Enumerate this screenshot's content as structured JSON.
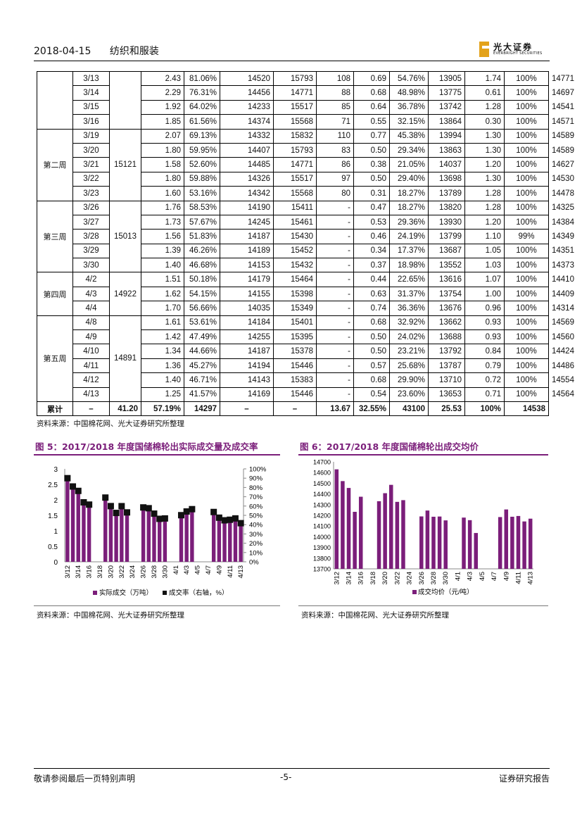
{
  "header": {
    "date": "2018-04-15",
    "section": "纺织和服装",
    "logo_cn": "光大证券",
    "logo_en": "EVERBRIGHT SECURITIES"
  },
  "table": {
    "groups": [
      {
        "week": "",
        "avg": "",
        "rows": [
          [
            "3/13",
            "2.43",
            "81.06%",
            "14520",
            "15793",
            "108",
            "0.69",
            "54.76%",
            "13905",
            "1.74",
            "100%",
            "14771"
          ],
          [
            "3/14",
            "2.29",
            "76.31%",
            "14456",
            "14771",
            "88",
            "0.68",
            "48.98%",
            "13775",
            "0.61",
            "100%",
            "14697"
          ],
          [
            "3/15",
            "1.92",
            "64.02%",
            "14233",
            "15517",
            "85",
            "0.64",
            "36.78%",
            "13742",
            "1.28",
            "100%",
            "14541"
          ],
          [
            "3/16",
            "1.85",
            "61.56%",
            "14374",
            "15568",
            "71",
            "0.55",
            "32.15%",
            "13864",
            "0.30",
            "100%",
            "14571"
          ]
        ]
      },
      {
        "week": "第二周",
        "avg": "15121",
        "rows": [
          [
            "3/19",
            "2.07",
            "69.13%",
            "14332",
            "15832",
            "110",
            "0.77",
            "45.38%",
            "13994",
            "1.30",
            "100%",
            "14589"
          ],
          [
            "3/20",
            "1.80",
            "59.95%",
            "14407",
            "15793",
            "83",
            "0.50",
            "29.34%",
            "13863",
            "1.30",
            "100%",
            "14589"
          ],
          [
            "3/21",
            "1.58",
            "52.60%",
            "14485",
            "14771",
            "86",
            "0.38",
            "21.05%",
            "14037",
            "1.20",
            "100%",
            "14627"
          ],
          [
            "3/22",
            "1.80",
            "59.88%",
            "14326",
            "15517",
            "97",
            "0.50",
            "29.40%",
            "13698",
            "1.30",
            "100%",
            "14530"
          ],
          [
            "3/23",
            "1.60",
            "53.16%",
            "14342",
            "15568",
            "80",
            "0.31",
            "18.27%",
            "13789",
            "1.28",
            "100%",
            "14478"
          ]
        ]
      },
      {
        "week": "第三周",
        "avg": "15013",
        "rows": [
          [
            "3/26",
            "1.76",
            "58.53%",
            "14190",
            "15411",
            "-",
            "0.47",
            "18.27%",
            "13820",
            "1.28",
            "100%",
            "14325"
          ],
          [
            "3/27",
            "1.73",
            "57.67%",
            "14245",
            "15461",
            "-",
            "0.53",
            "29.36%",
            "13930",
            "1.20",
            "100%",
            "14384"
          ],
          [
            "3/28",
            "1.56",
            "51.83%",
            "14187",
            "15430",
            "-",
            "0.46",
            "24.19%",
            "13799",
            "1.10",
            "99%",
            "14349"
          ],
          [
            "3/29",
            "1.39",
            "46.26%",
            "14189",
            "15452",
            "-",
            "0.34",
            "17.37%",
            "13687",
            "1.05",
            "100%",
            "14351"
          ],
          [
            "3/30",
            "1.40",
            "46.68%",
            "14153",
            "15432",
            "-",
            "0.37",
            "18.98%",
            "13552",
            "1.03",
            "100%",
            "14373"
          ]
        ]
      },
      {
        "week": "第四周",
        "avg": "14922",
        "rows": [
          [
            "4/2",
            "1.51",
            "50.18%",
            "14179",
            "15464",
            "-",
            "0.44",
            "22.65%",
            "13616",
            "1.07",
            "100%",
            "14410"
          ],
          [
            "4/3",
            "1.62",
            "54.15%",
            "14155",
            "15398",
            "-",
            "0.63",
            "31.37%",
            "13754",
            "1.00",
            "100%",
            "14409"
          ],
          [
            "4/4",
            "1.70",
            "56.66%",
            "14035",
            "15349",
            "-",
            "0.74",
            "36.36%",
            "13676",
            "0.96",
            "100%",
            "14314"
          ]
        ]
      },
      {
        "week": "第五周",
        "avg": "14891",
        "rows": [
          [
            "4/8",
            "1.61",
            "53.61%",
            "14184",
            "15401",
            "-",
            "0.68",
            "32.92%",
            "13662",
            "0.93",
            "100%",
            "14569"
          ],
          [
            "4/9",
            "1.42",
            "47.49%",
            "14255",
            "15395",
            "-",
            "0.50",
            "24.02%",
            "13688",
            "0.93",
            "100%",
            "14560"
          ],
          [
            "4/10",
            "1.34",
            "44.66%",
            "14187",
            "15378",
            "-",
            "0.50",
            "23.21%",
            "13792",
            "0.84",
            "100%",
            "14424"
          ],
          [
            "4/11",
            "1.36",
            "45.27%",
            "14194",
            "15446",
            "-",
            "0.57",
            "25.68%",
            "13787",
            "0.79",
            "100%",
            "14486"
          ],
          [
            "4/12",
            "1.40",
            "46.71%",
            "14143",
            "15383",
            "-",
            "0.68",
            "29.90%",
            "13710",
            "0.72",
            "100%",
            "14554"
          ],
          [
            "4/13",
            "1.25",
            "41.57%",
            "14169",
            "15446",
            "-",
            "0.54",
            "23.60%",
            "13653",
            "0.71",
            "100%",
            "14564"
          ]
        ]
      }
    ],
    "total": [
      "累计",
      "–",
      "41.20",
      "57.19%",
      "14297",
      "–",
      "–",
      "13.67",
      "32.55%",
      "43100",
      "25.53",
      "100%",
      "14538"
    ]
  },
  "source_note": "资料来源：中国棉花网、光大证券研究所整理",
  "chart_data": [
    {
      "type": "bar",
      "title": "图 5：2017/2018 年度国储棉轮出实际成交量及成交率",
      "categories": [
        "3/12",
        "3/13",
        "3/14",
        "3/15",
        "3/16",
        "3/17",
        "3/18",
        "3/19",
        "3/20",
        "3/21",
        "3/22",
        "3/23",
        "3/24",
        "3/25",
        "3/26",
        "3/27",
        "3/28",
        "3/29",
        "3/30",
        "3/31",
        "4/1",
        "4/2",
        "4/3",
        "4/4",
        "4/5",
        "4/6",
        "4/7",
        "4/8",
        "4/9",
        "4/10",
        "4/11",
        "4/12",
        "4/13"
      ],
      "tick_labels": [
        "3/12",
        "3/14",
        "3/16",
        "3/18",
        "3/20",
        "3/22",
        "3/24",
        "3/26",
        "3/28",
        "3/30",
        "4/1",
        "4/3",
        "4/5",
        "4/7",
        "4/9",
        "4/11",
        "4/13"
      ],
      "series": [
        {
          "name": "实际成交（万吨）",
          "axis": "left",
          "mark": "bar",
          "values": [
            2.7,
            2.43,
            2.29,
            1.92,
            1.85,
            null,
            null,
            2.07,
            1.8,
            1.58,
            1.8,
            1.6,
            null,
            null,
            1.76,
            1.73,
            1.56,
            1.39,
            1.4,
            null,
            null,
            1.51,
            1.62,
            1.7,
            null,
            null,
            null,
            1.61,
            1.42,
            1.34,
            1.36,
            1.4,
            1.25
          ]
        },
        {
          "name": "成交率（右轴，%）",
          "axis": "right",
          "mark": "square",
          "values": [
            0.9,
            0.8106,
            0.7631,
            0.6402,
            0.6156,
            null,
            null,
            0.6913,
            0.5995,
            0.526,
            0.5988,
            0.5316,
            null,
            null,
            0.5853,
            0.5767,
            0.5183,
            0.4626,
            0.4668,
            null,
            null,
            0.5018,
            0.5415,
            0.5666,
            null,
            null,
            null,
            0.5361,
            0.4749,
            0.4466,
            0.4527,
            0.4671,
            0.4157
          ]
        }
      ],
      "yticks_left": [
        "0",
        "0.5",
        "1",
        "1.5",
        "2",
        "2.5",
        "3"
      ],
      "yticks_right": [
        "0%",
        "10%",
        "20%",
        "30%",
        "40%",
        "50%",
        "60%",
        "70%",
        "80%",
        "90%",
        "100%"
      ],
      "ylim_left": [
        0,
        3
      ],
      "ylim_right": [
        0,
        1
      ],
      "bar_color": "#7b1e7a",
      "marker_color": "#111111"
    },
    {
      "type": "bar",
      "title": "图 6：2017/2018 年度国储棉轮出成交均价",
      "categories": [
        "3/12",
        "3/13",
        "3/14",
        "3/15",
        "3/16",
        "3/17",
        "3/18",
        "3/19",
        "3/20",
        "3/21",
        "3/22",
        "3/23",
        "3/24",
        "3/25",
        "3/26",
        "3/27",
        "3/28",
        "3/29",
        "3/30",
        "3/31",
        "4/1",
        "4/2",
        "4/3",
        "4/4",
        "4/5",
        "4/6",
        "4/7",
        "4/8",
        "4/9",
        "4/10",
        "4/11",
        "4/12",
        "4/13"
      ],
      "tick_labels": [
        "3/12",
        "3/14",
        "3/16",
        "3/18",
        "3/20",
        "3/22",
        "3/24",
        "3/26",
        "3/28",
        "3/30",
        "4/1",
        "4/3",
        "4/5",
        "4/7",
        "4/9",
        "4/11",
        "4/13"
      ],
      "series": [
        {
          "name": "成交均价（元/吨）",
          "values": [
            14630,
            14520,
            14456,
            14233,
            14374,
            null,
            null,
            14332,
            14407,
            14485,
            14326,
            14342,
            null,
            null,
            14190,
            14245,
            14187,
            14189,
            14153,
            null,
            null,
            14179,
            14155,
            14035,
            null,
            null,
            null,
            14184,
            14255,
            14187,
            14194,
            14143,
            14169
          ]
        }
      ],
      "yticks": [
        "13700",
        "13800",
        "13900",
        "14000",
        "14100",
        "14200",
        "14300",
        "14400",
        "14500",
        "14600",
        "14700"
      ],
      "ylim": [
        13700,
        14700
      ],
      "bar_color": "#7b1e7a"
    }
  ],
  "footer": {
    "left": "敬请参阅最后一页特别声明",
    "center": "-5-",
    "right": "证券研究报告"
  }
}
